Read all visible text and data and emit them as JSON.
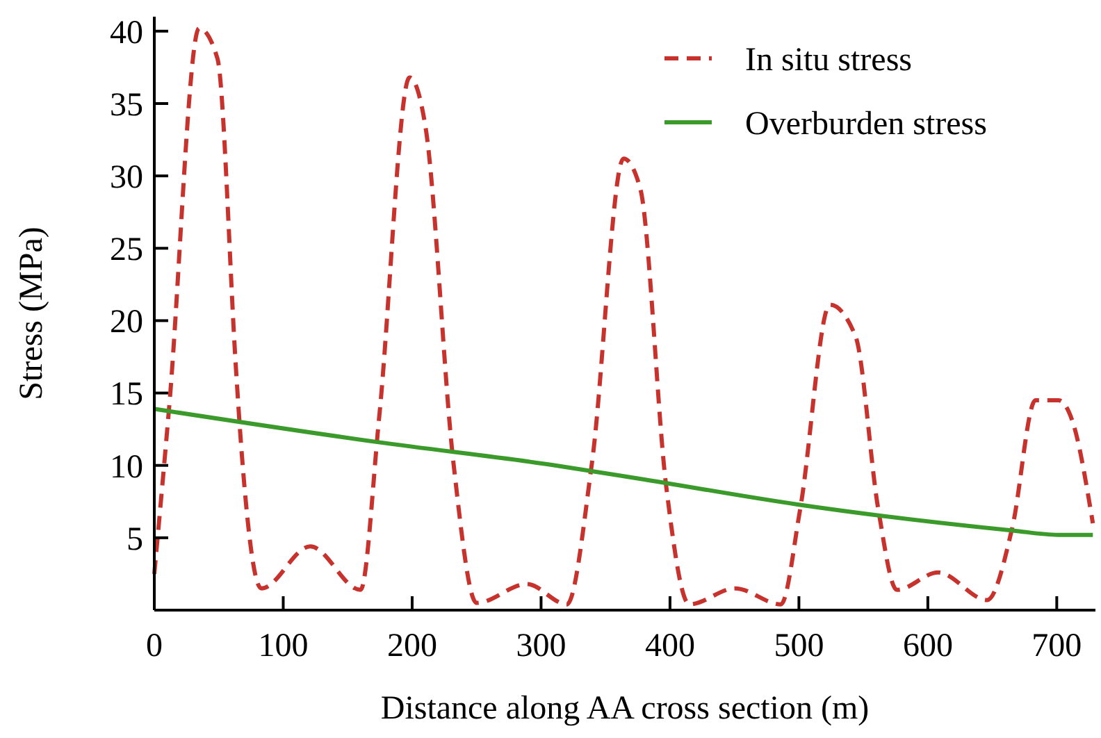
{
  "chart_data": {
    "type": "line",
    "xlabel": "Distance along AA cross section (m)",
    "ylabel": "Stress (MPa)",
    "xlim": [
      0,
      730
    ],
    "xticks": [
      0,
      100,
      200,
      300,
      400,
      500,
      600,
      700
    ],
    "ylim": [
      0,
      41
    ],
    "yticks": [
      5,
      10,
      15,
      20,
      25,
      30,
      35,
      40
    ],
    "grid": false,
    "legend": "top right",
    "series": [
      {
        "name": "In situ stress",
        "color": "#c8322d",
        "line_style": "dashed",
        "x": [
          0,
          11.5,
          34.8,
          49,
          63.4,
          67,
          83,
          121,
          160,
          174.5,
          198,
          210.5,
          232,
          250,
          289,
          320,
          339.5,
          364,
          377,
          397,
          415,
          450.5,
          486,
          501,
          524,
          544,
          561.5,
          576,
          608,
          646,
          665.5,
          683.5,
          701.4,
          712,
          728
        ],
        "values": [
          2.5,
          14,
          40.2,
          38.1,
          16.6,
          11.8,
          1.5,
          4.4,
          1.4,
          13.4,
          36.8,
          33.3,
          10.2,
          0.5,
          1.8,
          0.4,
          10.2,
          31.2,
          29.1,
          8.6,
          0.4,
          1.5,
          0.4,
          7,
          21.1,
          18.9,
          7,
          1.4,
          2.6,
          0.7,
          5.7,
          14.5,
          14.5,
          13.1,
          6
        ]
      },
      {
        "name": "Overburden stress",
        "color": "#3a9a2a",
        "line_style": "solid",
        "x": [
          0,
          174,
          311,
          375,
          499,
          666,
          701,
          728
        ],
        "values": [
          13.9,
          11.6,
          10,
          9.1,
          7.3,
          5.5,
          5.2,
          5.2
        ]
      }
    ]
  }
}
